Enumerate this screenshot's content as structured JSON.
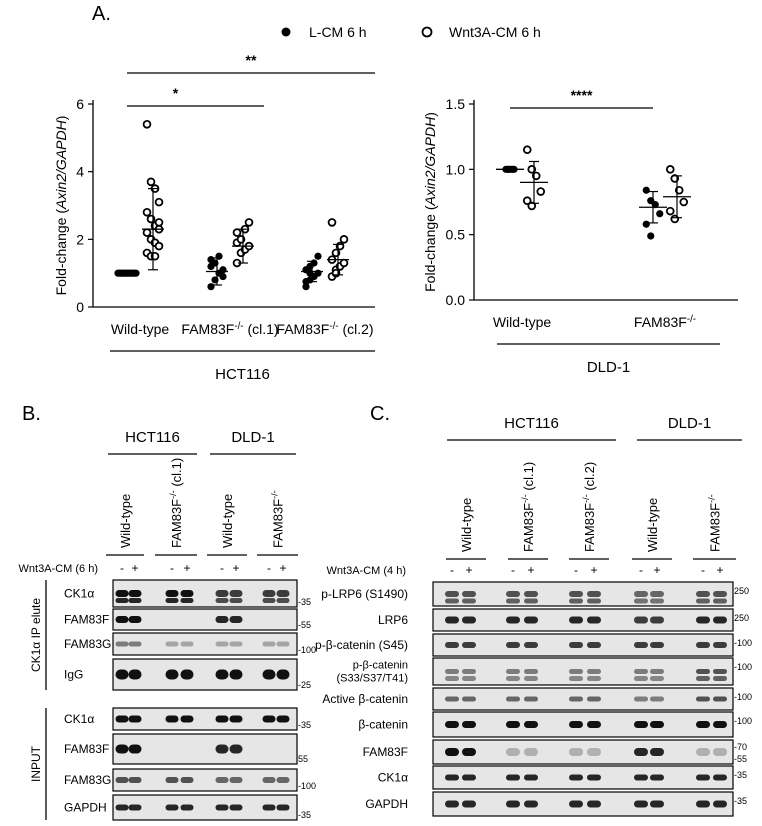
{
  "panel_a": {
    "label": "A.",
    "legend": {
      "filled": "L-CM 6 h",
      "open": "Wnt3A-CM 6 h"
    }
  },
  "panel_b": {
    "label": "B.",
    "cell_lines": [
      "HCT116",
      "DLD-1"
    ],
    "genotypes": [
      "Wild-type",
      "FAM83F-/- (cl.1)",
      "Wild-type",
      "FAM83F-/-"
    ],
    "treatment_label": "Wnt3A-CM (6 h)",
    "signs": [
      "-",
      "+",
      "-",
      "+",
      "-",
      "+",
      "-",
      "+"
    ],
    "section_ip": "CK1α IP elute",
    "section_input": "INPUT",
    "rows": [
      {
        "label": "CK1α",
        "mw": [
          "-35"
        ]
      },
      {
        "label": "FAM83F",
        "mw": [
          "-55"
        ]
      },
      {
        "label": "FAM83G",
        "mw": [
          "-100"
        ]
      },
      {
        "label": "IgG",
        "mw": [
          "-25"
        ]
      },
      {
        "label": "CK1α",
        "mw": [
          "-35"
        ]
      },
      {
        "label": "FAM83F",
        "mw": [
          "55"
        ]
      },
      {
        "label": "FAM83G",
        "mw": [
          "-100"
        ]
      },
      {
        "label": "GAPDH",
        "mw": [
          "-35"
        ]
      }
    ]
  },
  "panel_c": {
    "label": "C.",
    "cell_lines": [
      "HCT116",
      "DLD-1"
    ],
    "genotypes": [
      "Wild-type",
      "FAM83F-/- (cl.1)",
      "FAM83F-/- (cl.2)",
      "Wild-type",
      "FAM83F-/-"
    ],
    "treatment_label": "Wnt3A-CM (4 h)",
    "signs": [
      "-",
      "+",
      "-",
      "+",
      "-",
      "+",
      "-",
      "+",
      "-",
      "+"
    ],
    "rows": [
      {
        "label": "p-LRP6 (S1490)",
        "mw": [
          "250"
        ]
      },
      {
        "label": "LRP6",
        "mw": [
          "250"
        ]
      },
      {
        "label": "p-β-catenin (S45)",
        "mw": [
          "-100"
        ]
      },
      {
        "label": "p-β-catenin",
        "label2": "(S33/S37/T41)",
        "mw": [
          "-100"
        ]
      },
      {
        "label": "Active β-catenin",
        "mw": [
          "-100"
        ]
      },
      {
        "label": "β-catenin",
        "mw": [
          "-100"
        ]
      },
      {
        "label": "FAM83F",
        "mw": [
          "-70",
          "-55"
        ]
      },
      {
        "label": "CK1α",
        "mw": [
          "-35"
        ]
      },
      {
        "label": "GAPDH",
        "mw": [
          "-35"
        ]
      }
    ]
  },
  "chart_data": [
    {
      "type": "scatter",
      "title": "",
      "cell_line": "HCT116",
      "ylabel_prefix": "Fold-change (",
      "ylabel_italic": "Axin2/GAPDH",
      "ylabel_suffix": ")",
      "ylim": [
        0,
        6
      ],
      "yticks": [
        "0",
        "2",
        "4",
        "6"
      ],
      "groups": [
        "Wild-type",
        "FAM83F-/- (cl.1)",
        "FAM83F-/- (cl.2)"
      ],
      "group_mean": [
        "-",
        "Wnt3A-CM 6 h"
      ],
      "series": [
        {
          "name": "L-CM 6 h",
          "values": [
            [
              1,
              1,
              1,
              1,
              1,
              1,
              1,
              1,
              1,
              1,
              1,
              1,
              1,
              1,
              1,
              1
            ],
            [
              0.6,
              0.8,
              1.0,
              1.1,
              1.2,
              1.3,
              1.5,
              0.9,
              1.4
            ],
            [
              0.6,
              0.8,
              0.9,
              1.0,
              1.1,
              1.2,
              1.3,
              1.5,
              0.75,
              1.0
            ]
          ],
          "mean": [
            1.0,
            1.05,
            1.05
          ],
          "sd": [
            0.0,
            0.4,
            0.3
          ]
        },
        {
          "name": "Wnt3A-CM 6 h",
          "values": [
            [
              5.4,
              3.7,
              3.5,
              3.1,
              2.8,
              2.6,
              2.4,
              2.3,
              2.2,
              2.0,
              1.9,
              1.8,
              1.6,
              1.5,
              1.5,
              2.5
            ],
            [
              1.3,
              1.6,
              1.7,
              1.8,
              1.9,
              2.0,
              2.3,
              2.5,
              2.2
            ],
            [
              0.9,
              1.1,
              1.2,
              1.3,
              1.4,
              1.6,
              1.8,
              2.0,
              2.5,
              1.0
            ]
          ],
          "mean": [
            2.3,
            1.8,
            1.4
          ],
          "sd": [
            1.2,
            0.5,
            0.45
          ]
        }
      ],
      "significance": [
        {
          "from": "Wild-type",
          "to": "FAM83F-/- (cl.1)",
          "text": "*"
        },
        {
          "from": "Wild-type",
          "to": "FAM83F-/- (cl.2)",
          "text": "**"
        }
      ]
    },
    {
      "type": "scatter",
      "title": "",
      "cell_line": "DLD-1",
      "ylabel_prefix": "Fold-change (",
      "ylabel_italic": "Axin2/GAPDH",
      "ylabel_suffix": ")",
      "ylim": [
        0,
        1.5
      ],
      "yticks": [
        "0.0",
        "0.5",
        "1.0",
        "1.5"
      ],
      "groups": [
        "Wild-type",
        "FAM83F-/-"
      ],
      "series": [
        {
          "name": "L-CM 6 h",
          "values": [
            [
              1,
              1,
              1,
              1,
              1,
              1
            ],
            [
              0.84,
              0.76,
              0.73,
              0.66,
              0.58,
              0.49
            ]
          ],
          "mean": [
            1.0,
            0.71
          ],
          "sd": [
            0.0,
            0.12
          ]
        },
        {
          "name": "Wnt3A-CM 6 h",
          "values": [
            [
              1.15,
              1.0,
              0.95,
              0.83,
              0.76,
              0.72
            ],
            [
              1.0,
              0.93,
              0.84,
              0.75,
              0.68,
              0.62
            ]
          ],
          "mean": [
            0.9,
            0.79
          ],
          "sd": [
            0.16,
            0.16
          ]
        }
      ],
      "significance": [
        {
          "from": "Wild-type",
          "to": "FAM83F-/-",
          "text": "****"
        }
      ]
    }
  ]
}
